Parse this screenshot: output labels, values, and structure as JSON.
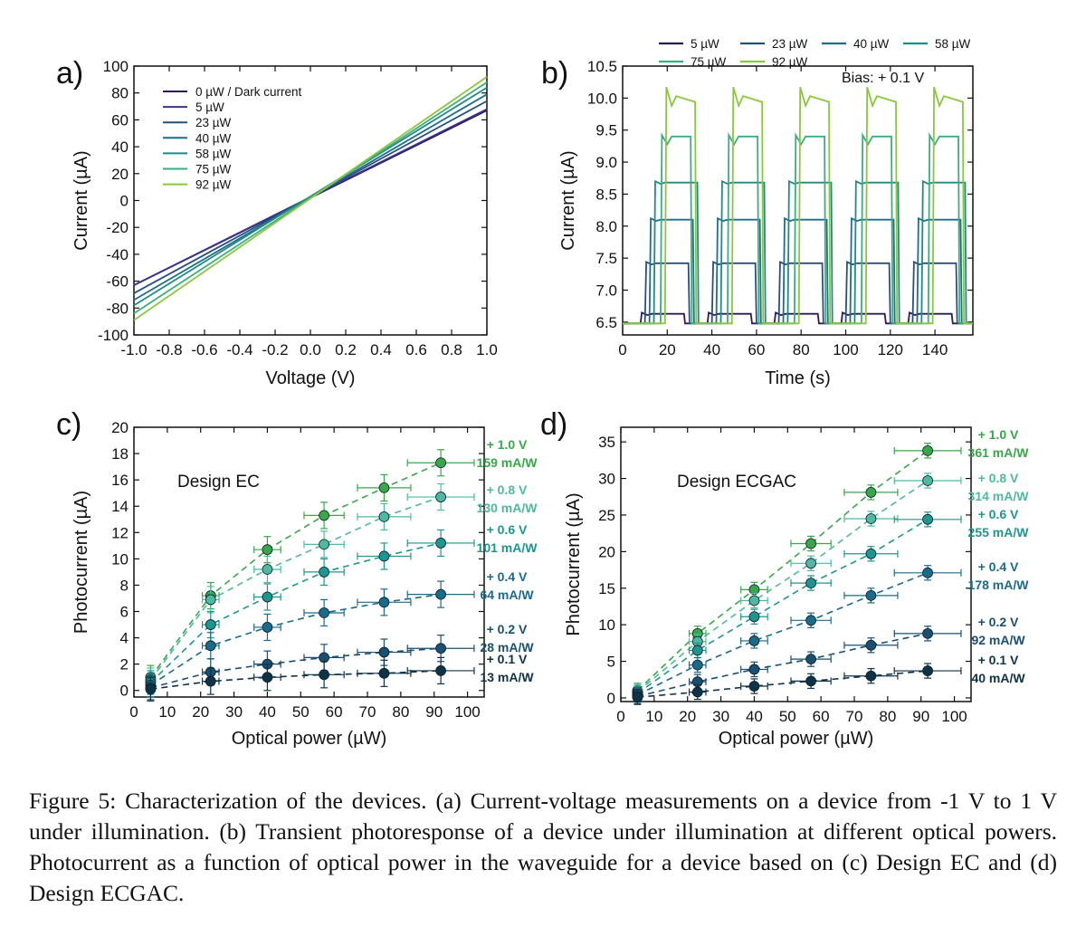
{
  "charts": [
    {
      "panel": "a)",
      "chart_data": {
        "type": "line",
        "xlabel": "Voltage (V)",
        "ylabel": "Current (µA)",
        "xlim": [
          -1.0,
          1.0
        ],
        "ylim": [
          -100,
          100
        ],
        "xticks": [
          -1.0,
          -0.8,
          -0.6,
          -0.4,
          -0.2,
          0.0,
          0.2,
          0.4,
          0.6,
          0.8,
          1.0
        ],
        "xtick_labels": [
          "-1.0",
          "-0.8",
          "-0.6",
          "-0.4",
          "-0.2",
          "0.0",
          "0.2",
          "0.4",
          "0.6",
          "0.8",
          "1.0"
        ],
        "yticks": [
          -100,
          -80,
          -60,
          -40,
          -20,
          0,
          20,
          40,
          60,
          80,
          100
        ],
        "ytick_labels": [
          "-100",
          "-80",
          "-60",
          "-40",
          "-20",
          "0",
          "20",
          "40",
          "60",
          "80",
          "100"
        ],
        "legend_position": "top-left",
        "series": [
          {
            "name": "0 µW / Dark current",
            "color": "#2b1b4f",
            "x": [
              -1.0,
              1.0
            ],
            "y": [
              -63,
              67
            ]
          },
          {
            "name": "5 µW",
            "color": "#3c3488",
            "x": [
              -1.0,
              1.0
            ],
            "y": [
              -63,
              68
            ]
          },
          {
            "name": "23 µW",
            "color": "#26517e",
            "x": [
              -1.0,
              1.0
            ],
            "y": [
              -69,
              74
            ]
          },
          {
            "name": "40 µW",
            "color": "#1f6d8a",
            "x": [
              -1.0,
              1.0
            ],
            "y": [
              -74,
              79
            ]
          },
          {
            "name": "58 µW",
            "color": "#1f8b86",
            "x": [
              -1.0,
              1.0
            ],
            "y": [
              -78,
              84
            ]
          },
          {
            "name": "75 µW",
            "color": "#3cad7e",
            "x": [
              -1.0,
              1.0
            ],
            "y": [
              -84,
              88
            ]
          },
          {
            "name": "92 µW",
            "color": "#8cc63e",
            "x": [
              -1.0,
              1.0
            ],
            "y": [
              -89,
              92
            ]
          }
        ]
      }
    },
    {
      "panel": "b)",
      "annotation": "Bias: + 0.1 V",
      "chart_data": {
        "type": "line",
        "xlabel": "Time (s)",
        "ylabel": "Current (µA)",
        "xlim": [
          0,
          157
        ],
        "ylim": [
          6.3,
          10.5
        ],
        "xticks": [
          0,
          20,
          40,
          60,
          80,
          100,
          120,
          140
        ],
        "xtick_labels": [
          "0",
          "20",
          "40",
          "60",
          "80",
          "100",
          "120",
          "140"
        ],
        "yticks": [
          6.5,
          7.0,
          7.5,
          8.0,
          8.5,
          9.0,
          9.5,
          10.0,
          10.5
        ],
        "ytick_labels": [
          "6.5",
          "7.0",
          "7.5",
          "8.0",
          "8.5",
          "9.0",
          "9.5",
          "10.0",
          "10.5"
        ],
        "baseline": 6.48,
        "pulse_period": 30,
        "legend_position": "top",
        "series": [
          {
            "name": "5 µW",
            "color": "#2b1b4f",
            "level": 6.63,
            "on_start": 8,
            "pulse_width": 20
          },
          {
            "name": "23 µW",
            "color": "#26517e",
            "level": 7.42,
            "on_start": 10,
            "pulse_width": 20
          },
          {
            "name": "40 µW",
            "color": "#1f6d8a",
            "level": 8.1,
            "on_start": 12,
            "pulse_width": 20
          },
          {
            "name": "58 µW",
            "color": "#1f8b86",
            "level": 8.68,
            "on_start": 14,
            "pulse_width": 20
          },
          {
            "name": "75 µW",
            "color": "#3cad7e",
            "level": 9.4,
            "on_start": 17,
            "pulse_width": 14
          },
          {
            "name": "92 µW",
            "color": "#8cc63e",
            "level": 10.0,
            "on_start": 19,
            "pulse_width": 14
          }
        ]
      }
    },
    {
      "panel": "c)",
      "inset_title": "Design EC",
      "chart_data": {
        "type": "scatter",
        "xlabel": "Optical power (µW)",
        "ylabel": "Photocurrent (µA)",
        "xlim": [
          0,
          105
        ],
        "ylim": [
          -0.5,
          20
        ],
        "xticks": [
          0,
          10,
          20,
          30,
          40,
          50,
          60,
          70,
          80,
          90,
          100
        ],
        "xtick_labels": [
          "0",
          "10",
          "20",
          "30",
          "40",
          "50",
          "60",
          "70",
          "80",
          "90",
          "100"
        ],
        "yticks": [
          0,
          2,
          4,
          6,
          8,
          10,
          12,
          14,
          16,
          18,
          20
        ],
        "ytick_labels": [
          "0",
          "2",
          "4",
          "6",
          "8",
          "10",
          "12",
          "14",
          "16",
          "18",
          "20"
        ],
        "x": [
          5,
          23,
          40,
          57,
          75,
          92
        ],
        "x_error": [
          0.5,
          2.5,
          4,
          6,
          8,
          10
        ],
        "series": [
          {
            "name": "+ 1.0 V",
            "responsivity": "159 mA/W",
            "color": "#3aa64a",
            "y": [
              1.0,
              7.2,
              10.7,
              13.3,
              15.4,
              17.3
            ],
            "y_error": [
              0.9,
              1.0,
              1.0,
              1.0,
              1.0,
              1.0
            ]
          },
          {
            "name": "+ 0.8 V",
            "responsivity": "130 mA/W",
            "color": "#4fb8a0",
            "y": [
              0.8,
              6.9,
              9.2,
              11.1,
              13.2,
              14.7
            ],
            "y_error": [
              0.9,
              1.0,
              1.0,
              1.0,
              1.0,
              1.0
            ]
          },
          {
            "name": "+ 0.6 V",
            "responsivity": "101 mA/W",
            "color": "#1f9590",
            "y": [
              0.6,
              5.0,
              7.1,
              9.0,
              10.2,
              11.2
            ],
            "y_error": [
              0.9,
              1.0,
              1.0,
              1.0,
              1.0,
              1.0
            ]
          },
          {
            "name": "+ 0.4 V",
            "responsivity": "64 mA/W",
            "color": "#1b6a8a",
            "y": [
              0.4,
              3.4,
              4.8,
              5.9,
              6.7,
              7.3
            ],
            "y_error": [
              0.9,
              1.0,
              1.0,
              1.0,
              1.0,
              1.0
            ]
          },
          {
            "name": "+ 0.2 V",
            "responsivity": "28 mA/W",
            "color": "#1a4f6f",
            "y": [
              0.2,
              1.4,
              2.0,
              2.5,
              2.9,
              3.2
            ],
            "y_error": [
              0.9,
              1.0,
              1.0,
              1.0,
              1.0,
              1.0
            ]
          },
          {
            "name": "+ 0.1 V",
            "responsivity": "13 mA/W",
            "color": "#0f3346",
            "y": [
              0.1,
              0.7,
              1.0,
              1.2,
              1.3,
              1.5
            ],
            "y_error": [
              0.9,
              1.0,
              1.0,
              1.0,
              1.0,
              1.0
            ]
          }
        ]
      }
    },
    {
      "panel": "d)",
      "inset_title": "Design ECGAC",
      "chart_data": {
        "type": "scatter",
        "xlabel": "Optical power (µW)",
        "ylabel": "Photocurrent (µA)",
        "xlim": [
          0,
          105
        ],
        "ylim": [
          -0.5,
          37
        ],
        "xticks": [
          0,
          10,
          20,
          30,
          40,
          50,
          60,
          70,
          80,
          90,
          100
        ],
        "xtick_labels": [
          "0",
          "10",
          "20",
          "30",
          "40",
          "50",
          "60",
          "70",
          "80",
          "90",
          "100"
        ],
        "yticks": [
          0,
          5,
          10,
          15,
          20,
          25,
          30,
          35
        ],
        "ytick_labels": [
          "0",
          "5",
          "10",
          "15",
          "20",
          "25",
          "30",
          "35"
        ],
        "x": [
          5,
          23,
          40,
          57,
          75,
          92
        ],
        "x_error": [
          0.5,
          2.5,
          4,
          6,
          8,
          10
        ],
        "series": [
          {
            "name": "+ 1.0 V",
            "responsivity": "361 mA/W",
            "color": "#3aa64a",
            "y": [
              1.0,
              8.8,
              14.8,
              21.1,
              28.1,
              33.8
            ],
            "y_error": [
              1.0,
              1.0,
              1.0,
              1.0,
              1.0,
              1.0
            ]
          },
          {
            "name": "+ 0.8 V",
            "responsivity": "314 mA/W",
            "color": "#4fb8a0",
            "y": [
              0.8,
              7.7,
              13.3,
              18.4,
              24.5,
              29.7
            ],
            "y_error": [
              1.0,
              1.0,
              1.0,
              1.0,
              1.0,
              1.0
            ]
          },
          {
            "name": "+ 0.6 V",
            "responsivity": "255 mA/W",
            "color": "#1f9590",
            "y": [
              0.6,
              6.5,
              11.1,
              15.7,
              19.7,
              24.4
            ],
            "y_error": [
              1.0,
              1.0,
              1.0,
              1.0,
              1.0,
              1.0
            ]
          },
          {
            "name": "+ 0.4 V",
            "responsivity": "178 mA/W",
            "color": "#1b6a8a",
            "y": [
              0.4,
              4.5,
              7.8,
              10.6,
              14.0,
              17.1
            ],
            "y_error": [
              1.0,
              1.0,
              1.0,
              1.0,
              1.0,
              1.0
            ]
          },
          {
            "name": "+ 0.2 V",
            "responsivity": "92 mA/W",
            "color": "#1a4f6f",
            "y": [
              0.2,
              2.2,
              3.9,
              5.3,
              7.2,
              8.8
            ],
            "y_error": [
              1.0,
              1.0,
              1.0,
              1.0,
              1.0,
              1.0
            ]
          },
          {
            "name": "+ 0.1 V",
            "responsivity": "40 mA/W",
            "color": "#0f3346",
            "y": [
              0.1,
              0.8,
              1.6,
              2.3,
              3.0,
              3.7
            ],
            "y_error": [
              1.0,
              1.0,
              1.0,
              1.0,
              1.0,
              1.0
            ]
          }
        ]
      }
    }
  ],
  "caption": "Figure 5: Characterization of the devices. (a) Current-voltage measurements on a device from -1 V to 1 V under illumination. (b) Transient photoresponse of a device under illumination at different optical powers. Photocurrent as a function of optical power in the waveguide for a device based on (c) Design EC and (d) Design ECGAC."
}
